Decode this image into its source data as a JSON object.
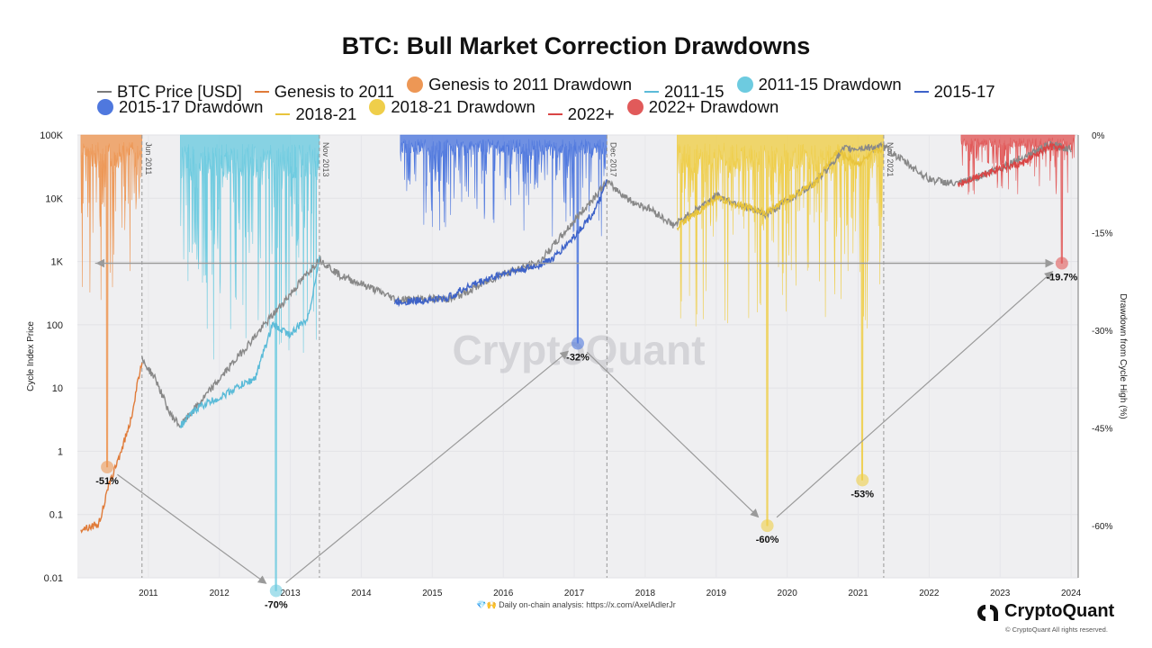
{
  "title": "BTC: Bull Market Correction Drawdowns",
  "legend": [
    {
      "label": "BTC Price [USD]",
      "kind": "line",
      "color": "#7a7a7a"
    },
    {
      "label": "Genesis to 2011",
      "kind": "line",
      "color": "#e07b39"
    },
    {
      "label": "Genesis to 2011 Drawdown",
      "kind": "dot",
      "color": "#ed9755"
    },
    {
      "label": "2011-15",
      "kind": "line",
      "color": "#5bbbd8"
    },
    {
      "label": "2011-15 Drawdown",
      "kind": "dot",
      "color": "#6dcbe0"
    },
    {
      "label": "2015-17",
      "kind": "line",
      "color": "#3d62c9"
    },
    {
      "label": "2015-17 Drawdown",
      "kind": "dot",
      "color": "#4f78de"
    },
    {
      "label": "2018-21",
      "kind": "line",
      "color": "#e8c43c"
    },
    {
      "label": "2018-21 Drawdown",
      "kind": "dot",
      "color": "#efce4a"
    },
    {
      "label": "2022+",
      "kind": "line",
      "color": "#d94545"
    },
    {
      "label": "2022+ Drawdown",
      "kind": "dot",
      "color": "#e15a5a"
    }
  ],
  "chart_data": {
    "type": "area",
    "title": "BTC: Bull Market Correction Drawdowns",
    "ylabel_left": "Cycle Index Price",
    "ylabel_right": "Drawdown from Cycle High (%)",
    "y_left_scale": "log",
    "y_left_ticks": [
      "0.01",
      "0.1",
      "1",
      "10",
      "100",
      "1K",
      "10K",
      "100K"
    ],
    "y_right_ticks": [
      "0%",
      "-15%",
      "-30%",
      "-45%",
      "-60%"
    ],
    "x_ticks": [
      "2011",
      "2012",
      "2013",
      "2014",
      "2015",
      "2016",
      "2017",
      "2018",
      "2019",
      "2020",
      "2021",
      "2022",
      "2023",
      "2024"
    ],
    "cycle_markers": [
      {
        "label": "Jun 2011",
        "year": 2011.41
      },
      {
        "label": "Nov 2013",
        "year": 2013.91
      },
      {
        "label": "Dec 2017",
        "year": 2017.96
      },
      {
        "label": "Nov 2021",
        "year": 2021.86
      }
    ],
    "series": [
      {
        "name": "BTC Price [USD]",
        "color": "#888888",
        "points": [
          [
            2011.41,
            28
          ],
          [
            2011.6,
            14
          ],
          [
            2011.8,
            4
          ],
          [
            2011.95,
            2.5
          ],
          [
            2013.91,
            1100
          ],
          [
            2014.2,
            600
          ],
          [
            2014.6,
            400
          ],
          [
            2015.0,
            250
          ],
          [
            2015.8,
            260
          ],
          [
            2016.5,
            650
          ],
          [
            2017.0,
            950
          ],
          [
            2017.96,
            18000
          ],
          [
            2018.3,
            9000
          ],
          [
            2018.6,
            6500
          ],
          [
            2018.9,
            3700
          ],
          [
            2019.5,
            11000
          ],
          [
            2020.2,
            5500
          ],
          [
            2020.9,
            18000
          ],
          [
            2021.3,
            60000
          ],
          [
            2021.86,
            65000
          ],
          [
            2022.5,
            20000
          ],
          [
            2022.9,
            16500
          ],
          [
            2023.5,
            30000
          ],
          [
            2024.2,
            70000
          ],
          [
            2024.5,
            60000
          ]
        ]
      },
      {
        "name": "Genesis to 2011",
        "color": "#e07b39",
        "points": [
          [
            2010.55,
            0.06
          ],
          [
            2010.8,
            0.07
          ],
          [
            2010.95,
            0.3
          ],
          [
            2011.1,
            0.9
          ],
          [
            2011.25,
            3
          ],
          [
            2011.41,
            28
          ]
        ]
      },
      {
        "name": "2011-15",
        "color": "#5bbbd8",
        "points": [
          [
            2011.95,
            2.5
          ],
          [
            2012.2,
            5
          ],
          [
            2012.5,
            7
          ],
          [
            2012.8,
            11
          ],
          [
            2013.0,
            14
          ],
          [
            2013.25,
            100
          ],
          [
            2013.5,
            70
          ],
          [
            2013.75,
            130
          ],
          [
            2013.91,
            1100
          ]
        ]
      },
      {
        "name": "2015-17",
        "color": "#3d62c9",
        "points": [
          [
            2014.97,
            230
          ],
          [
            2015.3,
            240
          ],
          [
            2015.7,
            260
          ],
          [
            2016.0,
            400
          ],
          [
            2016.5,
            650
          ],
          [
            2016.9,
            800
          ],
          [
            2017.2,
            1100
          ],
          [
            2017.5,
            2500
          ],
          [
            2017.8,
            6500
          ],
          [
            2017.96,
            18000
          ]
        ]
      },
      {
        "name": "2018-21",
        "color": "#e8c43c",
        "points": [
          [
            2018.95,
            3500
          ],
          [
            2019.5,
            10000
          ],
          [
            2019.9,
            7300
          ],
          [
            2020.2,
            6000
          ],
          [
            2020.5,
            9500
          ],
          [
            2020.9,
            18000
          ],
          [
            2021.2,
            55000
          ],
          [
            2021.5,
            35000
          ],
          [
            2021.86,
            65000
          ]
        ]
      },
      {
        "name": "2022+",
        "color": "#d94545",
        "points": [
          [
            2022.9,
            16500
          ],
          [
            2023.2,
            23000
          ],
          [
            2023.5,
            30000
          ],
          [
            2023.8,
            35000
          ],
          [
            2024.2,
            65000
          ],
          [
            2024.4,
            60000
          ]
        ]
      }
    ],
    "drawdown_areas": [
      {
        "name": "Genesis to 2011 Drawdown",
        "color": "#ed9755",
        "x0": 2010.55,
        "x1": 2011.41
      },
      {
        "name": "2011-15 Drawdown",
        "color": "#6dcbe0",
        "x0": 2011.95,
        "x1": 2013.91
      },
      {
        "name": "2015-17 Drawdown",
        "color": "#4f78de",
        "x0": 2015.05,
        "x1": 2017.96
      },
      {
        "name": "2018-21 Drawdown",
        "color": "#efce4a",
        "x0": 2018.95,
        "x1": 2021.86
      },
      {
        "name": "2022+ Drawdown",
        "color": "#e15a5a",
        "x0": 2022.95,
        "x1": 2024.55
      }
    ],
    "max_drawdowns": [
      {
        "label": "-51%",
        "year": 2010.92,
        "value": -51,
        "color": "#ed9755"
      },
      {
        "label": "-70%",
        "year": 2013.3,
        "value": -70,
        "color": "#6dcbe0"
      },
      {
        "label": "-32%",
        "year": 2017.55,
        "value": -32,
        "color": "#4f78de"
      },
      {
        "label": "-60%",
        "year": 2020.22,
        "value": -60,
        "color": "#efce4a"
      },
      {
        "label": "-53%",
        "year": 2021.56,
        "value": -53,
        "color": "#efce4a"
      },
      {
        "label": "-19.7%",
        "year": 2024.37,
        "value": -19.7,
        "color": "#e15a5a"
      }
    ],
    "reference_line": {
      "value": -19.7,
      "from_year": 2010.75,
      "to_year": 2024.37
    }
  },
  "watermark": "CryptoQuant",
  "footer": "💎🙌 Daily on-chain analysis: https://x.com/AxelAdlerJr",
  "brand": "CryptoQuant",
  "copyright": "© CryptoQuant All rights reserved."
}
